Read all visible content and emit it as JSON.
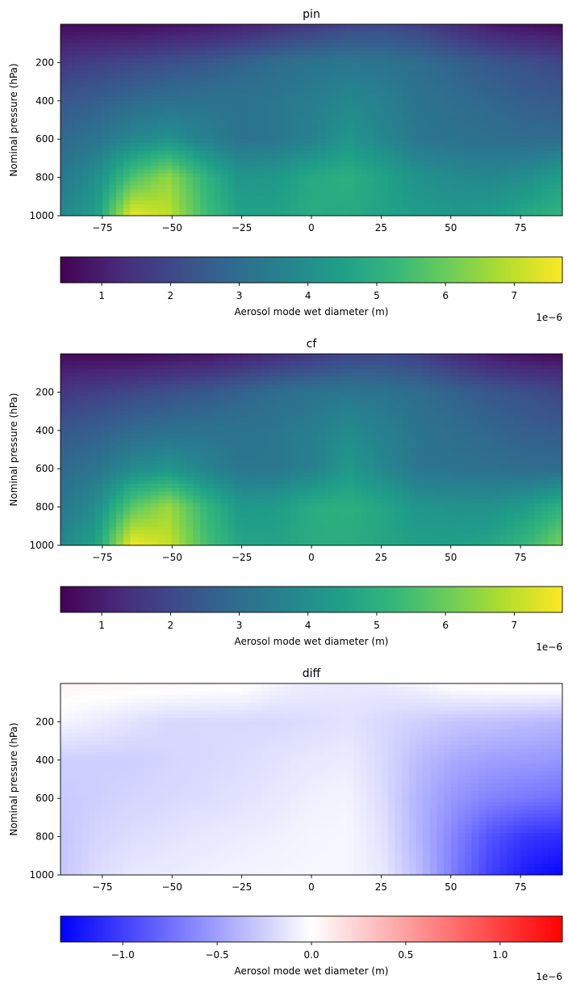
{
  "chart_data": [
    {
      "type": "heatmap",
      "title": "pin",
      "ylabel": "Nominal pressure (hPa)",
      "xlabel": "",
      "x_range": [
        -90,
        90
      ],
      "y_range": [
        1000,
        0
      ],
      "y_inverted": true,
      "x_ticks": [
        "−75",
        "−50",
        "−25",
        "0",
        "25",
        "50",
        "75"
      ],
      "x_tick_values": [
        -75,
        -50,
        -25,
        0,
        25,
        50,
        75
      ],
      "y_ticks": [
        "200",
        "400",
        "600",
        "800",
        "1000"
      ],
      "y_tick_values": [
        200,
        400,
        600,
        800,
        1000
      ],
      "colormap": "viridis",
      "colorbar": {
        "label": "Aerosol mode wet diameter (m)",
        "range": [
          0.4,
          7.7
        ],
        "ticks": [
          "1",
          "2",
          "3",
          "4",
          "5",
          "6",
          "7"
        ],
        "tick_values": [
          1,
          2,
          3,
          4,
          5,
          6,
          7
        ],
        "offset_text": "1e−6",
        "colors": [
          "#440154",
          "#482878",
          "#3e4989",
          "#31688e",
          "#26828e",
          "#1f9e89",
          "#35b779",
          "#6ece58",
          "#b5de2b",
          "#fde725"
        ]
      },
      "value_field_note_1e-6": [
        [
          0.6,
          0.6,
          0.6,
          0.7,
          0.8,
          1.0,
          1.3,
          1.6,
          1.9,
          2.0,
          1.8,
          1.3,
          0.9,
          0.7,
          0.6
        ],
        [
          1.6,
          1.8,
          2.0,
          2.2,
          2.4,
          2.7,
          3.0,
          3.2,
          3.3,
          3.2,
          3.0,
          2.7,
          2.4,
          2.2,
          2.0
        ],
        [
          2.4,
          2.6,
          2.9,
          3.1,
          3.2,
          3.2,
          3.3,
          3.5,
          3.8,
          3.6,
          3.2,
          3.0,
          2.8,
          2.6,
          2.5
        ],
        [
          2.9,
          3.2,
          3.8,
          4.1,
          3.6,
          3.2,
          3.3,
          3.6,
          4.2,
          3.8,
          3.3,
          3.2,
          3.1,
          3.0,
          3.0
        ],
        [
          3.3,
          4.0,
          5.6,
          6.5,
          5.2,
          4.2,
          4.3,
          4.8,
          5.0,
          4.6,
          4.1,
          3.9,
          3.8,
          4.0,
          4.5
        ],
        [
          3.8,
          4.5,
          7.5,
          7.0,
          5.5,
          4.6,
          4.6,
          4.9,
          4.8,
          4.6,
          4.4,
          4.3,
          4.4,
          4.8,
          5.2
        ]
      ]
    },
    {
      "type": "heatmap",
      "title": "cf",
      "ylabel": "Nominal pressure (hPa)",
      "xlabel": "",
      "x_range": [
        -90,
        90
      ],
      "y_range": [
        1000,
        0
      ],
      "y_inverted": true,
      "x_ticks": [
        "−75",
        "−50",
        "−25",
        "0",
        "25",
        "50",
        "75"
      ],
      "x_tick_values": [
        -75,
        -50,
        -25,
        0,
        25,
        50,
        75
      ],
      "y_ticks": [
        "200",
        "400",
        "600",
        "800",
        "1000"
      ],
      "y_tick_values": [
        200,
        400,
        600,
        800,
        1000
      ],
      "colormap": "viridis",
      "colorbar": {
        "label": "Aerosol mode wet diameter (m)",
        "range": [
          0.4,
          7.7
        ],
        "ticks": [
          "1",
          "2",
          "3",
          "4",
          "5",
          "6",
          "7"
        ],
        "tick_values": [
          1,
          2,
          3,
          4,
          5,
          6,
          7
        ],
        "offset_text": "1e−6",
        "colors": [
          "#440154",
          "#482878",
          "#3e4989",
          "#31688e",
          "#26828e",
          "#1f9e89",
          "#35b779",
          "#6ece58",
          "#b5de2b",
          "#fde725"
        ]
      },
      "value_field_note_1e-6": [
        [
          0.6,
          0.6,
          0.6,
          0.7,
          0.8,
          1.0,
          1.3,
          1.6,
          1.9,
          2.0,
          1.8,
          1.3,
          0.9,
          0.7,
          0.6
        ],
        [
          1.6,
          1.8,
          2.0,
          2.2,
          2.4,
          2.7,
          3.0,
          3.2,
          3.3,
          3.2,
          3.0,
          2.7,
          2.4,
          2.2,
          2.0
        ],
        [
          2.4,
          2.6,
          2.9,
          3.1,
          3.2,
          3.2,
          3.3,
          3.5,
          3.9,
          3.6,
          3.2,
          3.0,
          2.8,
          2.6,
          2.5
        ],
        [
          2.9,
          3.2,
          3.9,
          4.2,
          3.7,
          3.3,
          3.3,
          3.6,
          4.3,
          3.8,
          3.3,
          3.2,
          3.1,
          3.0,
          3.0
        ],
        [
          3.3,
          4.0,
          5.8,
          6.6,
          5.3,
          4.3,
          4.4,
          4.9,
          5.0,
          4.7,
          4.2,
          4.1,
          4.1,
          4.4,
          5.1
        ],
        [
          3.8,
          4.6,
          7.6,
          7.1,
          5.6,
          4.7,
          4.6,
          4.9,
          4.9,
          4.7,
          4.5,
          4.5,
          4.7,
          5.3,
          6.2
        ]
      ]
    },
    {
      "type": "heatmap",
      "title": "diff",
      "ylabel": "Nominal pressure (hPa)",
      "xlabel": "",
      "x_range": [
        -90,
        90
      ],
      "y_range": [
        1000,
        0
      ],
      "y_inverted": true,
      "x_ticks": [
        "−75",
        "−50",
        "−25",
        "0",
        "25",
        "50",
        "75"
      ],
      "x_tick_values": [
        -75,
        -50,
        -25,
        0,
        25,
        50,
        75
      ],
      "y_ticks": [
        "200",
        "400",
        "600",
        "800",
        "1000"
      ],
      "y_tick_values": [
        200,
        400,
        600,
        800,
        1000
      ],
      "colormap": "bwr",
      "colorbar": {
        "label": "Aerosol mode wet diameter (m)",
        "range": [
          -1.33,
          1.33
        ],
        "ticks": [
          "−1.0",
          "−0.5",
          "0.0",
          "0.5",
          "1.0"
        ],
        "tick_values": [
          -1.0,
          -0.5,
          0.0,
          0.5,
          1.0
        ],
        "offset_text": "1e−6",
        "colors": [
          "#0000ff",
          "#ffffff",
          "#ff0000"
        ]
      },
      "value_field_note_1e-6": [
        [
          0.06,
          0.06,
          0.05,
          0.05,
          0.04,
          0.03,
          -0.05,
          -0.1,
          -0.12,
          -0.1,
          -0.05,
          0.03,
          0.05,
          0.06,
          0.06
        ],
        [
          -0.05,
          -0.1,
          -0.15,
          -0.2,
          -0.2,
          -0.2,
          -0.2,
          -0.18,
          -0.15,
          -0.2,
          -0.25,
          -0.3,
          -0.32,
          -0.35,
          -0.38
        ],
        [
          -0.25,
          -0.25,
          -0.25,
          -0.22,
          -0.2,
          -0.18,
          -0.15,
          -0.12,
          -0.1,
          -0.2,
          -0.35,
          -0.45,
          -0.5,
          -0.52,
          -0.55
        ],
        [
          -0.28,
          -0.25,
          -0.22,
          -0.2,
          -0.18,
          -0.15,
          -0.12,
          -0.08,
          -0.06,
          -0.18,
          -0.4,
          -0.55,
          -0.65,
          -0.7,
          -0.75
        ],
        [
          -0.3,
          -0.22,
          -0.18,
          -0.15,
          -0.12,
          -0.1,
          -0.08,
          -0.05,
          -0.04,
          -0.15,
          -0.4,
          -0.65,
          -0.9,
          -1.05,
          -1.1
        ],
        [
          -0.3,
          -0.18,
          -0.12,
          -0.1,
          -0.08,
          -0.06,
          -0.05,
          -0.04,
          -0.04,
          -0.12,
          -0.35,
          -0.7,
          -1.0,
          -1.2,
          -1.3
        ]
      ]
    }
  ]
}
